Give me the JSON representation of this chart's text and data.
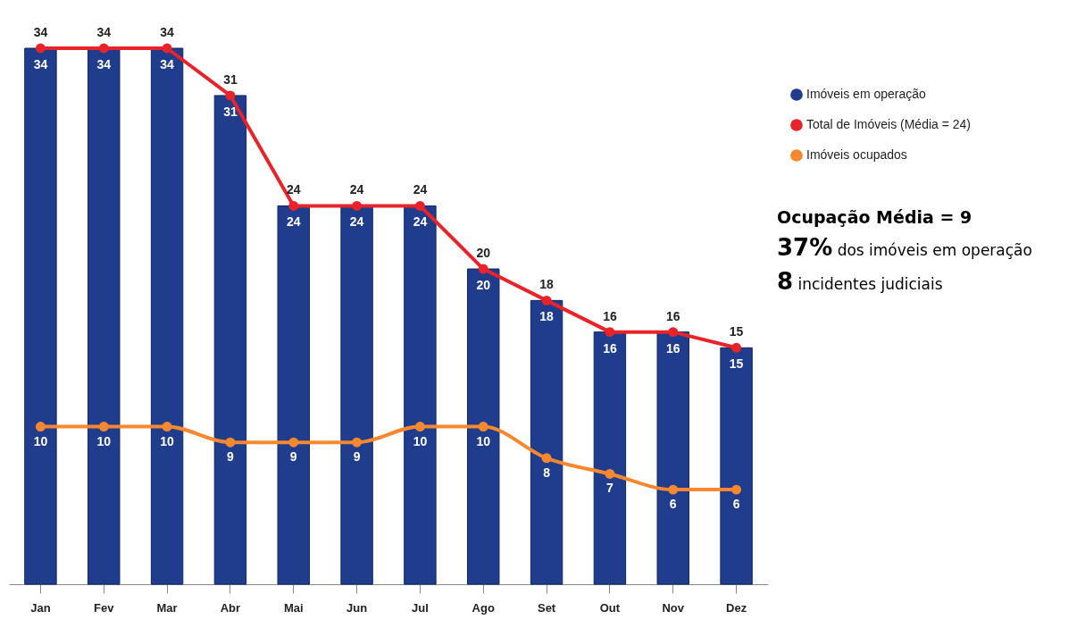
{
  "chart_data": {
    "type": "bar",
    "categories": [
      "Jan",
      "Fev",
      "Mar",
      "Abr",
      "Mai",
      "Jun",
      "Jul",
      "Ago",
      "Set",
      "Out",
      "Nov",
      "Dez"
    ],
    "series": [
      {
        "name": "Imóveis em operação",
        "color": "#1f3d8c",
        "values": [
          34,
          34,
          34,
          31,
          24,
          24,
          24,
          20,
          18,
          16,
          16,
          15
        ]
      },
      {
        "name": "Total de Imóveis (Média = 24)",
        "type": "line",
        "color": "#e8242a",
        "values": [
          34,
          34,
          34,
          31,
          24,
          24,
          24,
          20,
          18,
          16,
          16,
          15
        ]
      },
      {
        "name": "Imóveis ocupados",
        "type": "line",
        "color": "#f7882f",
        "values": [
          10,
          10,
          10,
          9,
          9,
          9,
          10,
          10,
          8,
          7,
          6,
          6
        ]
      }
    ],
    "data_labels": true,
    "legend": "top right",
    "marker": "circle",
    "grid": false,
    "tick_labels": "x",
    "annotations": [
      "Ocupação Média = 9",
      "37% dos imóveis em operação",
      "8 incidentes judiciais"
    ]
  }
}
